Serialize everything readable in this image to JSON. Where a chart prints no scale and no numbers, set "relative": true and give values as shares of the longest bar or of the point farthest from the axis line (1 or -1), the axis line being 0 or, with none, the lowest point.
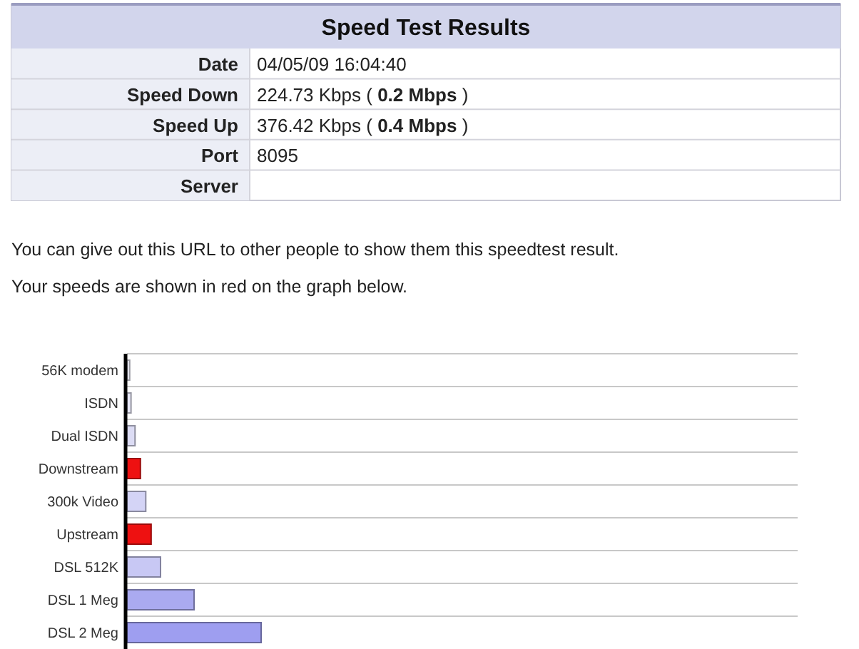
{
  "chart_data": {
    "type": "bar",
    "orientation": "horizontal",
    "relative": true,
    "title": "Speed Test Results",
    "categories": [
      "56K modem",
      "ISDN",
      "Dual ISDN",
      "Downstream",
      "300k Video",
      "Upstream",
      "DSL 512K",
      "DSL 1 Meg",
      "DSL 2 Meg"
    ],
    "values": [
      0.02,
      0.03,
      0.06,
      0.1,
      0.14,
      0.18,
      0.25,
      0.5,
      1
    ],
    "colors": [
      "#f0f0fa",
      "#e8e8f8",
      "#dcdcf4",
      "#ee1111",
      "#d4d4f6",
      "#ee1111",
      "#c8c8f4",
      "#aaaaf0",
      "#9e9ef0"
    ],
    "grid": true,
    "annotations": [
      "Date",
      "04/05/09 16:04:40",
      "Speed Down",
      "224.73 Kbps ( 0.2 Mbps )",
      "Speed Up",
      "376.42 Kbps ( 0.4 Mbps )",
      "Port",
      "8095",
      "Server",
      "You can give out this URL to other people to show them this speedtest result.",
      "Your speeds are shown in red on the graph below."
    ]
  }
}
